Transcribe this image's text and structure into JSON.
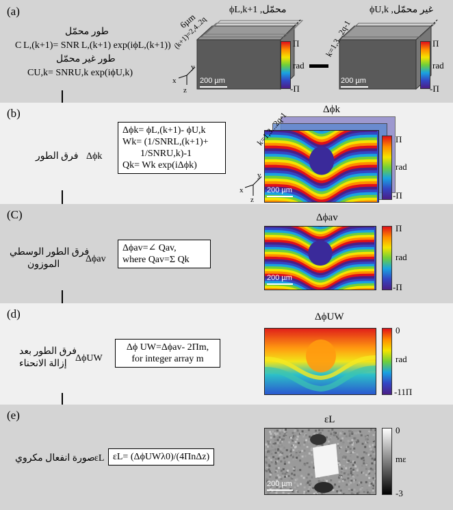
{
  "panels": {
    "a": {
      "label": "(a)",
      "loaded_phase_ar": "طور محمّل",
      "eq_loaded": "C L,(k+1)= SNR L,(k+1) exp(iϕL,(k+1))",
      "unloaded_phase_ar": "طور غير محمّل",
      "eq_unloaded": "CU,k= SNRU,k exp(iϕU,k)",
      "vol1_title": "ϕL,k+1 ,محمّل",
      "vol2_title": "ϕU,k ,غير محمّل",
      "depth_label": "6µm",
      "k_even_label": "(k+1)=2,4..2q",
      "k_odd_label": "k=1,3...2q-1",
      "scalebar_label": "200 µm",
      "cb_top": "Π",
      "cb_mid": "rad",
      "cb_bot": "-Π",
      "axes": {
        "x": "x",
        "y": "y",
        "z": "z"
      }
    },
    "b": {
      "label": "(b)",
      "quantity_ar": "فرق الطور",
      "symbol": "Δϕk",
      "eq_lines": [
        "Δϕk= ϕL,(k+1)- ϕU,k",
        "Wk= (1/SNRL,(k+1)+",
        "1/SNRU,k)-1",
        "Qk= Wk exp(iΔϕk)"
      ],
      "image_title": "Δϕk",
      "k_label": "k=1,3...2q-1",
      "scalebar_label": "200 µm",
      "cb_top": "Π",
      "cb_mid": "rad",
      "cb_bot": "-Π"
    },
    "c": {
      "label": "(C)",
      "quantity_ar_1": "فرق الطور الوسطي",
      "quantity_ar_2": "الموزون",
      "symbol": "Δϕav",
      "eq_lines": [
        "Δϕav=∠ Qav,",
        "where Qav=Σ Qk"
      ],
      "image_title": "Δϕav",
      "scalebar_label": "200 µm",
      "cb_top": "Π",
      "cb_mid": "rad",
      "cb_bot": "-Π"
    },
    "d": {
      "label": "(d)",
      "quantity_ar_1": "فرق الطور بعد",
      "quantity_ar_2": "إزالة الانحناء",
      "symbol": "ΔϕUW",
      "eq_lines": [
        "Δϕ UW=Δϕav- 2Πm,",
        "for integer array m"
      ],
      "image_title": "ΔϕUW",
      "cb_top": "0",
      "cb_mid": "rad",
      "cb_bot": "-11Π"
    },
    "e": {
      "label": "(e)",
      "quantity_ar": "صورة انفعال مكروي",
      "symbol": "εL",
      "eq": "εL= (ΔϕUWλ0)/(4ΠnΔz)",
      "image_title": "εL",
      "scalebar_label": "200 µm",
      "cb_top": "0",
      "cb_mid": "mε",
      "cb_bot": "-3"
    }
  },
  "colors": {
    "panel_gray": "#d4d4d4",
    "panel_light": "#f0f0f0",
    "box_gray": "#5a5a5a"
  }
}
